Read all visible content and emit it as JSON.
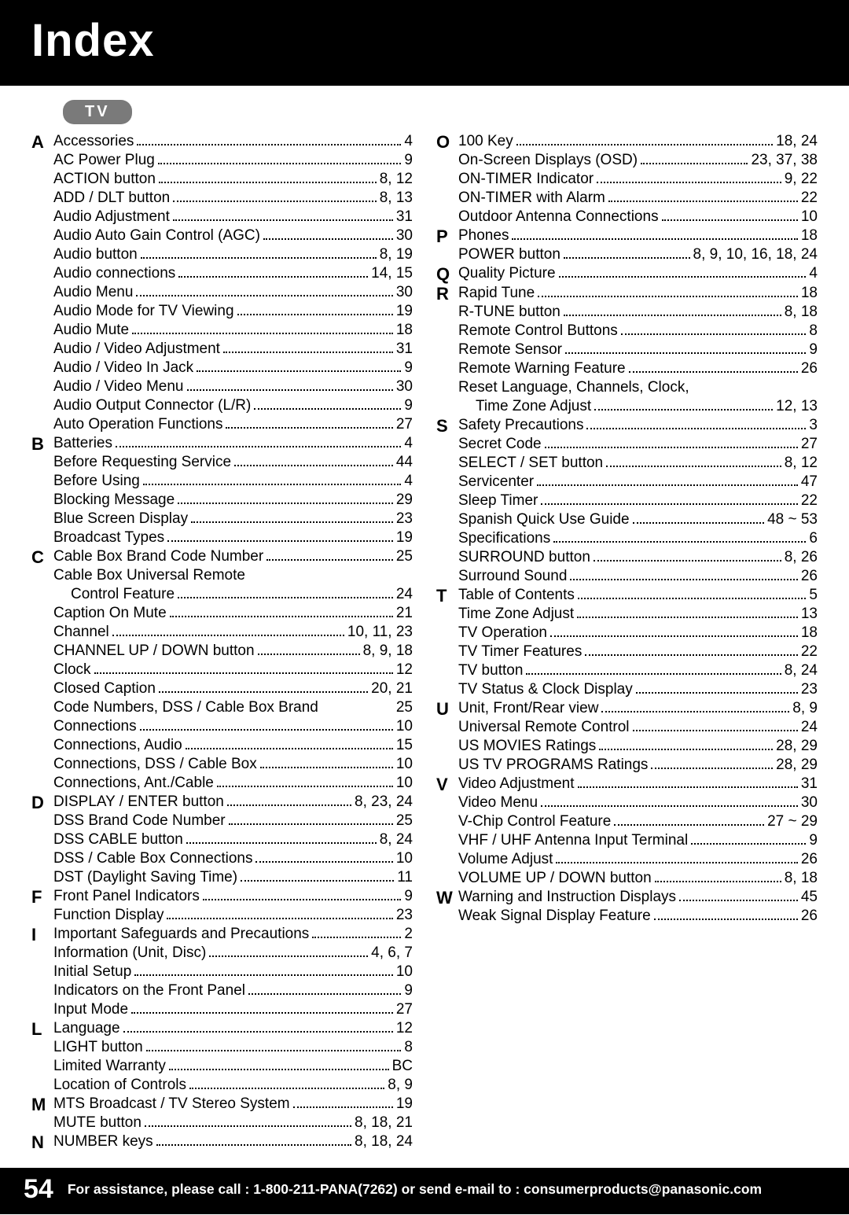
{
  "header": {
    "title": "Index"
  },
  "section_label": "TV",
  "footer": {
    "page_number": "54",
    "text": "For assistance, please call : 1-800-211-PANA(7262) or send e-mail to : consumerproducts@panasonic.com"
  },
  "colors": {
    "header_bg": "#000000",
    "header_fg": "#ffffff",
    "tab_bg": "#7a7a7a",
    "tab_fg": "#ffffff",
    "text": "#000000"
  },
  "columns": [
    [
      {
        "letter": "A",
        "entries": [
          {
            "label": "Accessories",
            "pages": "4"
          },
          {
            "label": "AC Power Plug",
            "pages": "9"
          },
          {
            "label": "ACTION button",
            "pages": "8, 12"
          },
          {
            "label": "ADD / DLT button",
            "pages": "8, 13"
          },
          {
            "label": "Audio Adjustment",
            "pages": "31"
          },
          {
            "label": "Audio Auto Gain Control (AGC)",
            "pages": "30"
          },
          {
            "label": "Audio button",
            "pages": "8, 19"
          },
          {
            "label": "Audio connections",
            "pages": "14, 15"
          },
          {
            "label": "Audio Menu",
            "pages": "30"
          },
          {
            "label": "Audio Mode for TV Viewing",
            "pages": "19"
          },
          {
            "label": "Audio Mute",
            "pages": "18"
          },
          {
            "label": "Audio / Video Adjustment",
            "pages": "31"
          },
          {
            "label": "Audio / Video In Jack",
            "pages": "9"
          },
          {
            "label": "Audio / Video Menu",
            "pages": "30"
          },
          {
            "label": "Audio Output Connector (L/R)",
            "pages": "9"
          },
          {
            "label": "Auto Operation Functions",
            "pages": "27"
          }
        ]
      },
      {
        "letter": "B",
        "entries": [
          {
            "label": "Batteries",
            "pages": "4"
          },
          {
            "label": "Before Requesting Service",
            "pages": "44"
          },
          {
            "label": "Before Using",
            "pages": "4"
          },
          {
            "label": "Blocking Message",
            "pages": "29"
          },
          {
            "label": "Blue Screen Display",
            "pages": "23"
          },
          {
            "label": "Broadcast Types",
            "pages": "19"
          }
        ]
      },
      {
        "letter": "C",
        "entries": [
          {
            "label": "Cable Box Brand Code Number",
            "pages": "25"
          },
          {
            "label": "Cable Box Universal Remote",
            "pages": "",
            "noleader": true
          },
          {
            "label": "Control Feature",
            "pages": "24",
            "sub": true
          },
          {
            "label": "Caption On Mute",
            "pages": "21"
          },
          {
            "label": "Channel",
            "pages": "10, 11, 23"
          },
          {
            "label": "CHANNEL UP / DOWN button",
            "pages": "8, 9, 18"
          },
          {
            "label": "Clock",
            "pages": "12"
          },
          {
            "label": "Closed Caption",
            "pages": "20, 21"
          },
          {
            "label": "Code Numbers, DSS / Cable Box Brand",
            "pages": "25",
            "noleader": true
          },
          {
            "label": "Connections",
            "pages": "10"
          },
          {
            "label": "Connections, Audio",
            "pages": "15"
          },
          {
            "label": "Connections, DSS / Cable Box",
            "pages": "10"
          },
          {
            "label": "Connections, Ant./Cable",
            "pages": "10"
          }
        ]
      },
      {
        "letter": "D",
        "entries": [
          {
            "label": "DISPLAY / ENTER button",
            "pages": "8, 23, 24"
          },
          {
            "label": "DSS Brand Code Number",
            "pages": "25"
          },
          {
            "label": "DSS CABLE button",
            "pages": "8, 24"
          },
          {
            "label": "DSS / Cable Box Connections",
            "pages": "10"
          },
          {
            "label": "DST (Daylight Saving Time)",
            "pages": "11"
          }
        ]
      },
      {
        "letter": "F",
        "entries": [
          {
            "label": "Front Panel Indicators",
            "pages": "9"
          },
          {
            "label": "Function Display",
            "pages": "23"
          }
        ]
      },
      {
        "letter": "I",
        "entries": [
          {
            "label": "Important Safeguards and Precautions",
            "pages": "2"
          },
          {
            "label": "Information (Unit, Disc)",
            "pages": "4, 6, 7"
          },
          {
            "label": "Initial Setup",
            "pages": "10"
          },
          {
            "label": "Indicators on the Front Panel",
            "pages": "9"
          },
          {
            "label": "Input Mode",
            "pages": "27"
          }
        ]
      },
      {
        "letter": "L",
        "entries": [
          {
            "label": "Language",
            "pages": "12"
          },
          {
            "label": "LIGHT button",
            "pages": "8"
          },
          {
            "label": "Limited Warranty",
            "pages": "BC"
          },
          {
            "label": "Location of Controls",
            "pages": "8, 9"
          }
        ]
      },
      {
        "letter": "M",
        "entries": [
          {
            "label": "MTS Broadcast / TV Stereo System",
            "pages": "19"
          },
          {
            "label": "MUTE button",
            "pages": "8, 18, 21"
          }
        ]
      },
      {
        "letter": "N",
        "entries": [
          {
            "label": "NUMBER keys",
            "pages": "8, 18, 24"
          }
        ]
      }
    ],
    [
      {
        "letter": "O",
        "entries": [
          {
            "label": "100 Key",
            "pages": "18, 24"
          },
          {
            "label": "On-Screen Displays (OSD)",
            "pages": "23, 37, 38"
          },
          {
            "label": "ON-TIMER Indicator",
            "pages": "9, 22"
          },
          {
            "label": "ON-TIMER with Alarm",
            "pages": "22"
          },
          {
            "label": "Outdoor Antenna Connections",
            "pages": "10"
          }
        ]
      },
      {
        "letter": "P",
        "entries": [
          {
            "label": "Phones",
            "pages": "18"
          },
          {
            "label": "POWER button",
            "pages": "8, 9, 10, 16, 18, 24"
          }
        ]
      },
      {
        "letter": "Q",
        "entries": [
          {
            "label": "Quality Picture",
            "pages": "4"
          }
        ]
      },
      {
        "letter": "R",
        "entries": [
          {
            "label": "Rapid Tune",
            "pages": "18"
          },
          {
            "label": "R-TUNE button",
            "pages": "8, 18"
          },
          {
            "label": "Remote Control Buttons",
            "pages": "8"
          },
          {
            "label": "Remote Sensor",
            "pages": "9"
          },
          {
            "label": "Remote Warning Feature",
            "pages": "26"
          },
          {
            "label": "Reset Language, Channels, Clock,",
            "pages": "",
            "noleader": true
          },
          {
            "label": "Time Zone Adjust",
            "pages": "12, 13",
            "sub": true
          }
        ]
      },
      {
        "letter": "S",
        "entries": [
          {
            "label": "Safety Precautions",
            "pages": "3"
          },
          {
            "label": "Secret Code",
            "pages": "27"
          },
          {
            "label": "SELECT / SET button",
            "pages": "8, 12"
          },
          {
            "label": "Servicenter",
            "pages": "47"
          },
          {
            "label": "Sleep Timer",
            "pages": "22"
          },
          {
            "label": "Spanish Quick Use Guide",
            "pages": "48 ~ 53"
          },
          {
            "label": "Specifications",
            "pages": "6"
          },
          {
            "label": "SURROUND button",
            "pages": "8, 26"
          },
          {
            "label": "Surround Sound",
            "pages": "26"
          }
        ]
      },
      {
        "letter": "T",
        "entries": [
          {
            "label": "Table of Contents",
            "pages": "5"
          },
          {
            "label": "Time Zone Adjust",
            "pages": "13"
          },
          {
            "label": "TV Operation",
            "pages": "18"
          },
          {
            "label": "TV Timer Features",
            "pages": "22"
          },
          {
            "label": "TV button",
            "pages": "8, 24"
          },
          {
            "label": "TV Status & Clock Display",
            "pages": "23"
          }
        ]
      },
      {
        "letter": "U",
        "entries": [
          {
            "label": "Unit, Front/Rear view",
            "pages": "8, 9"
          },
          {
            "label": "Universal Remote Control",
            "pages": "24"
          },
          {
            "label": "US MOVIES Ratings",
            "pages": "28, 29"
          },
          {
            "label": "US TV PROGRAMS Ratings",
            "pages": "28, 29"
          }
        ]
      },
      {
        "letter": "V",
        "entries": [
          {
            "label": "Video Adjustment",
            "pages": "31"
          },
          {
            "label": "Video Menu",
            "pages": "30"
          },
          {
            "label": "V-Chip Control Feature",
            "pages": "27 ~ 29"
          },
          {
            "label": "VHF / UHF Antenna Input Terminal",
            "pages": "9"
          },
          {
            "label": "Volume Adjust",
            "pages": "26"
          },
          {
            "label": "VOLUME UP / DOWN button",
            "pages": "8, 18"
          }
        ]
      },
      {
        "letter": "W",
        "entries": [
          {
            "label": "Warning and Instruction Displays",
            "pages": "45"
          },
          {
            "label": "Weak Signal Display Feature",
            "pages": "26"
          }
        ]
      }
    ]
  ]
}
